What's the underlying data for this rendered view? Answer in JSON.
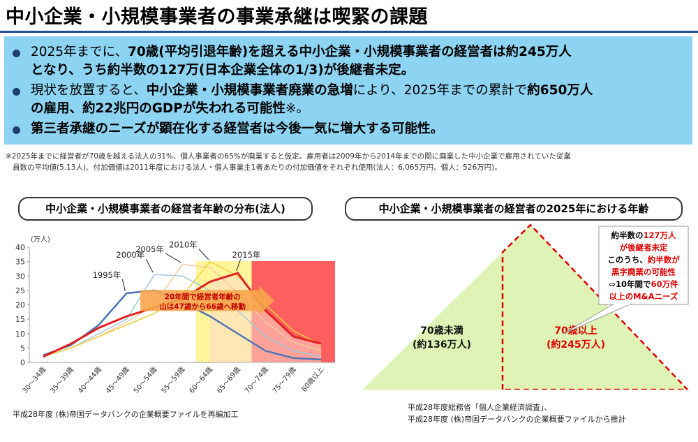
{
  "title": "中小企業・小規模事業者の事業承継は喫緊の課題",
  "bullets": [
    {
      "line1": [
        "2025年までに、",
        "70歳(平均引退年齢)を超える中小企業・小規模事業者の経営者は約245万人"
      ],
      "line2": [
        "となり、うち約半数の127万(日本企業全体の1/3)が後継者未定。",
        ""
      ]
    },
    {
      "line1": [
        "現状を放置すると、",
        "中小企業・小規模事業者廃業の急増",
        "により、2025年までの累計で",
        "約650万人"
      ],
      "line2": [
        "の雇用、約22兆円のGDPが失われる可能性",
        "※。"
      ]
    },
    {
      "line1": [
        "第三者承継のニーズが顕在化する経営者は今後一気に増大する可能性。"
      ]
    }
  ],
  "footnote": {
    "line1": "※2025年までに経営者が70歳を越える法人の31%、個人事業者の65%が廃業すると仮定。雇用者は2009年から2014年までの間に廃業した中小企業で雇用されていた従業",
    "line2": "員数の平均値(5.13人)、付加価値は2011年度における法人・個人事業主1者あたりの付加価値をそれぞれ使用(法人：6,065万円、個人：526万円)。"
  },
  "left_panel": {
    "title": "中小企業・小規模事業者の経営者年齢の分布(法人)",
    "source": "平成28年度 (株)帝国データバンクの企業概要ファイルを再編加工"
  },
  "right_panel": {
    "title": "中小企業・小規模事業者の経営者の2025年における年齢",
    "source_line1": "平成28年度総務省「個人企業経済調査」、",
    "source_line2": "平成28年度 (株)帝国データバンクの企業概要ファイルから推計"
  },
  "chart_data": [
    {
      "type": "line",
      "unit_label": "(万人)",
      "ylim": [
        0,
        40
      ],
      "yticks": [
        0,
        5,
        10,
        15,
        20,
        25,
        30,
        35,
        40
      ],
      "categories": [
        "30～34歳",
        "35～39歳",
        "40～44歳",
        "45～49歳",
        "50～54歳",
        "55～59歳",
        "60～64歳",
        "65～69歳",
        "70～74歳",
        "75～79歳",
        "80歳以上"
      ],
      "series": [
        {
          "name": "1995年",
          "values": [
            2.5,
            6,
            13,
            24,
            25,
            21,
            16,
            10,
            4,
            1.5,
            1
          ],
          "color": "#4a76b8"
        },
        {
          "name": "2000年",
          "values": [
            2,
            5,
            10,
            15,
            30.5,
            30,
            25,
            18,
            9,
            4,
            2
          ],
          "color": "#9ec8e0"
        },
        {
          "name": "2005年",
          "values": [
            2,
            5,
            9,
            14,
            20,
            34,
            33,
            24,
            14,
            7,
            4
          ],
          "color": "#f5c99a"
        },
        {
          "name": "2010年",
          "values": [
            2,
            5,
            9,
            13,
            17,
            23,
            35,
            30,
            20,
            11,
            6
          ],
          "color": "#f2cf3a"
        },
        {
          "name": "2015年",
          "values": [
            2,
            6.5,
            12,
            16,
            19,
            22,
            28,
            31,
            18,
            9,
            6.5
          ],
          "color": "#e02020"
        }
      ],
      "annotation": {
        "line1": "20年間で経営者年齢の",
        "line2": "山は47歳から66歳へ移動"
      }
    },
    {
      "type": "pie",
      "title": "中小企業・小規模事業者の経営者の2025年における年齢",
      "segments": [
        {
          "label": "70歳未満",
          "sub": "(約136万人)",
          "value": 136,
          "color": "#d7f0a8"
        },
        {
          "label": "70歳以上",
          "sub": "(約245万人)",
          "value": 245,
          "color": "#d7f0a8"
        }
      ],
      "callout": [
        {
          "parts": [
            [
              "約半数の",
              "#000"
            ],
            [
              "127万人",
              "#e00000"
            ]
          ]
        },
        {
          "parts": [
            [
              "が後継者未定",
              "#e00000"
            ]
          ]
        },
        {
          "parts": [
            [
              "このうち、",
              "#000"
            ],
            [
              "約半数が",
              "#e00000"
            ]
          ]
        },
        {
          "parts": [
            [
              "黒字廃業の可能性",
              "#e00000"
            ]
          ]
        },
        {
          "parts": [
            [
              "⇨10年間で",
              "#000"
            ],
            [
              "60万件",
              "#e00000"
            ]
          ]
        },
        {
          "parts": [
            [
              "以上のM&Aニーズ",
              "#e00000"
            ]
          ]
        }
      ]
    }
  ]
}
